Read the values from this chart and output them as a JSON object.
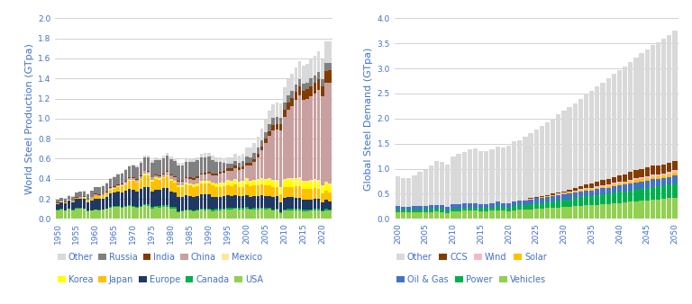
{
  "chart1": {
    "ylabel": "World Steel Production (GTpa)",
    "years": [
      1950,
      1951,
      1952,
      1953,
      1954,
      1955,
      1956,
      1957,
      1958,
      1959,
      1960,
      1961,
      1962,
      1963,
      1964,
      1965,
      1966,
      1967,
      1968,
      1969,
      1970,
      1971,
      1972,
      1973,
      1974,
      1975,
      1976,
      1977,
      1978,
      1979,
      1980,
      1981,
      1982,
      1983,
      1984,
      1985,
      1986,
      1987,
      1988,
      1989,
      1990,
      1991,
      1992,
      1993,
      1994,
      1995,
      1996,
      1997,
      1998,
      1999,
      2000,
      2001,
      2002,
      2003,
      2004,
      2005,
      2006,
      2007,
      2008,
      2009,
      2010,
      2011,
      2012,
      2013,
      2014,
      2015,
      2016,
      2017,
      2018,
      2019,
      2020,
      2021,
      2022
    ],
    "series": {
      "USA": [
        0.088,
        0.095,
        0.084,
        0.101,
        0.088,
        0.106,
        0.104,
        0.102,
        0.077,
        0.084,
        0.09,
        0.088,
        0.089,
        0.099,
        0.115,
        0.119,
        0.121,
        0.115,
        0.119,
        0.128,
        0.119,
        0.109,
        0.121,
        0.136,
        0.132,
        0.105,
        0.116,
        0.113,
        0.124,
        0.123,
        0.101,
        0.102,
        0.067,
        0.075,
        0.083,
        0.08,
        0.074,
        0.08,
        0.09,
        0.088,
        0.089,
        0.079,
        0.084,
        0.088,
        0.091,
        0.095,
        0.095,
        0.098,
        0.097,
        0.097,
        0.102,
        0.09,
        0.091,
        0.091,
        0.099,
        0.094,
        0.098,
        0.082,
        0.091,
        0.058,
        0.08,
        0.086,
        0.088,
        0.087,
        0.088,
        0.079,
        0.079,
        0.082,
        0.087,
        0.088,
        0.073,
        0.086,
        0.081
      ],
      "Canada": [
        0.003,
        0.003,
        0.003,
        0.003,
        0.003,
        0.004,
        0.004,
        0.004,
        0.004,
        0.004,
        0.005,
        0.005,
        0.005,
        0.006,
        0.007,
        0.008,
        0.008,
        0.007,
        0.009,
        0.01,
        0.011,
        0.011,
        0.012,
        0.013,
        0.013,
        0.012,
        0.013,
        0.014,
        0.015,
        0.016,
        0.015,
        0.014,
        0.012,
        0.012,
        0.014,
        0.014,
        0.014,
        0.014,
        0.015,
        0.015,
        0.013,
        0.013,
        0.014,
        0.014,
        0.014,
        0.015,
        0.015,
        0.016,
        0.015,
        0.014,
        0.016,
        0.015,
        0.016,
        0.016,
        0.016,
        0.015,
        0.013,
        0.013,
        0.014,
        0.009,
        0.013,
        0.013,
        0.013,
        0.013,
        0.013,
        0.012,
        0.013,
        0.013,
        0.013,
        0.013,
        0.011,
        0.013,
        0.012
      ],
      "Europe": [
        0.06,
        0.065,
        0.07,
        0.075,
        0.076,
        0.088,
        0.09,
        0.094,
        0.088,
        0.097,
        0.108,
        0.106,
        0.11,
        0.117,
        0.131,
        0.135,
        0.14,
        0.14,
        0.152,
        0.161,
        0.157,
        0.151,
        0.162,
        0.17,
        0.175,
        0.155,
        0.163,
        0.159,
        0.165,
        0.17,
        0.155,
        0.148,
        0.135,
        0.13,
        0.14,
        0.135,
        0.134,
        0.137,
        0.143,
        0.14,
        0.14,
        0.13,
        0.12,
        0.115,
        0.12,
        0.125,
        0.12,
        0.122,
        0.115,
        0.115,
        0.12,
        0.115,
        0.116,
        0.117,
        0.12,
        0.121,
        0.12,
        0.121,
        0.118,
        0.095,
        0.115,
        0.115,
        0.113,
        0.112,
        0.11,
        0.1,
        0.1,
        0.1,
        0.1,
        0.098,
        0.085,
        0.09,
        0.085
      ],
      "Japan": [
        0.005,
        0.006,
        0.007,
        0.008,
        0.008,
        0.009,
        0.011,
        0.012,
        0.012,
        0.016,
        0.022,
        0.028,
        0.028,
        0.031,
        0.039,
        0.041,
        0.047,
        0.062,
        0.066,
        0.082,
        0.093,
        0.088,
        0.096,
        0.119,
        0.117,
        0.102,
        0.107,
        0.102,
        0.102,
        0.112,
        0.111,
        0.101,
        0.099,
        0.097,
        0.105,
        0.105,
        0.098,
        0.098,
        0.105,
        0.108,
        0.11,
        0.109,
        0.098,
        0.099,
        0.098,
        0.102,
        0.098,
        0.105,
        0.093,
        0.094,
        0.107,
        0.102,
        0.108,
        0.11,
        0.113,
        0.105,
        0.106,
        0.105,
        0.097,
        0.087,
        0.11,
        0.107,
        0.107,
        0.111,
        0.111,
        0.105,
        0.105,
        0.105,
        0.104,
        0.099,
        0.083,
        0.096,
        0.089
      ],
      "Korea": [
        0.0,
        0.0,
        0.0,
        0.0,
        0.0,
        0.0,
        0.0,
        0.0,
        0.0,
        0.0,
        0.0,
        0.0,
        0.0,
        0.0,
        0.0,
        0.0,
        0.0,
        0.001,
        0.001,
        0.001,
        0.001,
        0.002,
        0.003,
        0.004,
        0.006,
        0.007,
        0.008,
        0.008,
        0.007,
        0.007,
        0.008,
        0.01,
        0.012,
        0.011,
        0.013,
        0.013,
        0.014,
        0.016,
        0.019,
        0.021,
        0.023,
        0.026,
        0.028,
        0.033,
        0.033,
        0.036,
        0.038,
        0.042,
        0.039,
        0.041,
        0.043,
        0.043,
        0.045,
        0.046,
        0.047,
        0.047,
        0.049,
        0.051,
        0.053,
        0.051,
        0.059,
        0.069,
        0.069,
        0.066,
        0.071,
        0.069,
        0.068,
        0.071,
        0.073,
        0.071,
        0.067,
        0.07,
        0.066
      ],
      "Mexico": [
        0.002,
        0.002,
        0.002,
        0.002,
        0.002,
        0.003,
        0.003,
        0.003,
        0.003,
        0.003,
        0.004,
        0.004,
        0.004,
        0.004,
        0.005,
        0.005,
        0.006,
        0.006,
        0.007,
        0.007,
        0.008,
        0.008,
        0.008,
        0.007,
        0.007,
        0.007,
        0.007,
        0.007,
        0.007,
        0.007,
        0.007,
        0.007,
        0.007,
        0.007,
        0.007,
        0.007,
        0.007,
        0.007,
        0.008,
        0.009,
        0.009,
        0.008,
        0.009,
        0.009,
        0.01,
        0.012,
        0.012,
        0.014,
        0.015,
        0.015,
        0.016,
        0.013,
        0.014,
        0.014,
        0.016,
        0.016,
        0.017,
        0.017,
        0.017,
        0.014,
        0.018,
        0.018,
        0.018,
        0.018,
        0.019,
        0.018,
        0.019,
        0.019,
        0.02,
        0.02,
        0.016,
        0.018,
        0.018
      ],
      "China": [
        0.001,
        0.001,
        0.002,
        0.002,
        0.002,
        0.003,
        0.004,
        0.005,
        0.008,
        0.013,
        0.018,
        0.008,
        0.008,
        0.009,
        0.01,
        0.012,
        0.015,
        0.014,
        0.017,
        0.018,
        0.018,
        0.021,
        0.023,
        0.025,
        0.021,
        0.024,
        0.021,
        0.023,
        0.022,
        0.034,
        0.037,
        0.036,
        0.037,
        0.04,
        0.043,
        0.047,
        0.052,
        0.056,
        0.059,
        0.061,
        0.066,
        0.07,
        0.08,
        0.09,
        0.092,
        0.095,
        0.101,
        0.108,
        0.115,
        0.124,
        0.129,
        0.152,
        0.182,
        0.222,
        0.273,
        0.356,
        0.422,
        0.49,
        0.5,
        0.57,
        0.625,
        0.68,
        0.72,
        0.78,
        0.823,
        0.804,
        0.81,
        0.831,
        0.854,
        0.897,
        0.888,
        0.981,
        1.005
      ],
      "India": [
        0.002,
        0.002,
        0.002,
        0.002,
        0.002,
        0.002,
        0.003,
        0.003,
        0.003,
        0.003,
        0.003,
        0.004,
        0.005,
        0.006,
        0.006,
        0.006,
        0.007,
        0.007,
        0.006,
        0.006,
        0.006,
        0.007,
        0.008,
        0.007,
        0.007,
        0.008,
        0.01,
        0.01,
        0.009,
        0.009,
        0.01,
        0.01,
        0.012,
        0.012,
        0.012,
        0.013,
        0.014,
        0.014,
        0.014,
        0.015,
        0.015,
        0.018,
        0.019,
        0.02,
        0.021,
        0.022,
        0.022,
        0.025,
        0.024,
        0.025,
        0.027,
        0.027,
        0.027,
        0.032,
        0.032,
        0.045,
        0.049,
        0.053,
        0.058,
        0.063,
        0.069,
        0.074,
        0.078,
        0.081,
        0.087,
        0.09,
        0.096,
        0.101,
        0.107,
        0.111,
        0.1,
        0.118,
        0.124
      ],
      "Russia": [
        0.027,
        0.031,
        0.034,
        0.038,
        0.041,
        0.045,
        0.049,
        0.051,
        0.054,
        0.058,
        0.065,
        0.071,
        0.076,
        0.08,
        0.085,
        0.091,
        0.096,
        0.1,
        0.106,
        0.11,
        0.116,
        0.12,
        0.125,
        0.132,
        0.136,
        0.141,
        0.145,
        0.148,
        0.151,
        0.149,
        0.148,
        0.149,
        0.148,
        0.149,
        0.148,
        0.155,
        0.16,
        0.161,
        0.163,
        0.16,
        0.154,
        0.133,
        0.116,
        0.096,
        0.076,
        0.052,
        0.049,
        0.048,
        0.044,
        0.048,
        0.059,
        0.059,
        0.06,
        0.062,
        0.065,
        0.066,
        0.071,
        0.072,
        0.068,
        0.06,
        0.067,
        0.069,
        0.071,
        0.069,
        0.071,
        0.071,
        0.071,
        0.083,
        0.072,
        0.072,
        0.073,
        0.078,
        0.072
      ],
      "Other": [
        0.002,
        0.003,
        0.003,
        0.003,
        0.003,
        0.004,
        0.004,
        0.005,
        0.005,
        0.005,
        0.006,
        0.007,
        0.007,
        0.008,
        0.008,
        0.009,
        0.01,
        0.011,
        0.012,
        0.013,
        0.014,
        0.015,
        0.017,
        0.019,
        0.02,
        0.021,
        0.022,
        0.024,
        0.025,
        0.027,
        0.027,
        0.028,
        0.028,
        0.029,
        0.03,
        0.031,
        0.032,
        0.034,
        0.036,
        0.038,
        0.04,
        0.042,
        0.044,
        0.046,
        0.05,
        0.055,
        0.062,
        0.068,
        0.072,
        0.078,
        0.09,
        0.095,
        0.1,
        0.108,
        0.115,
        0.12,
        0.13,
        0.14,
        0.145,
        0.14,
        0.155,
        0.16,
        0.167,
        0.172,
        0.18,
        0.18,
        0.185,
        0.195,
        0.2,
        0.2,
        0.195,
        0.215,
        0.22
      ]
    },
    "series_order": [
      "USA",
      "Canada",
      "Europe",
      "Japan",
      "Korea",
      "Mexico",
      "China",
      "India",
      "Russia",
      "Other"
    ],
    "colors": {
      "USA": "#92d050",
      "Canada": "#00b050",
      "Europe": "#1f3864",
      "Japan": "#ffc000",
      "Korea": "#ffff00",
      "Mexico": "#ffe699",
      "China": "#c9a0a0",
      "India": "#833c00",
      "Russia": "#808080",
      "Other": "#d9d9d9"
    },
    "ylim": [
      0,
      2.0
    ],
    "yticks": [
      0.0,
      0.2,
      0.4,
      0.6,
      0.8,
      1.0,
      1.2,
      1.4,
      1.6,
      1.8,
      2.0
    ],
    "legend_row1": [
      "Other",
      "Russia",
      "India",
      "China",
      "Mexico"
    ],
    "legend_row2": [
      "Korea",
      "Japan",
      "Europe",
      "Canada",
      "USA"
    ]
  },
  "chart2": {
    "ylabel": "Global Steel Demand (GTpa)",
    "years": [
      2000,
      2001,
      2002,
      2003,
      2004,
      2005,
      2006,
      2007,
      2008,
      2009,
      2010,
      2011,
      2012,
      2013,
      2014,
      2015,
      2016,
      2017,
      2018,
      2019,
      2020,
      2021,
      2022,
      2023,
      2024,
      2025,
      2026,
      2027,
      2028,
      2029,
      2030,
      2031,
      2032,
      2033,
      2034,
      2035,
      2036,
      2037,
      2038,
      2039,
      2040,
      2041,
      2042,
      2043,
      2044,
      2045,
      2046,
      2047,
      2048,
      2049,
      2050
    ],
    "series": {
      "Vehicles": [
        0.14,
        0.13,
        0.13,
        0.13,
        0.14,
        0.14,
        0.14,
        0.15,
        0.14,
        0.12,
        0.15,
        0.15,
        0.16,
        0.16,
        0.16,
        0.15,
        0.15,
        0.16,
        0.17,
        0.16,
        0.15,
        0.17,
        0.18,
        0.18,
        0.19,
        0.2,
        0.21,
        0.22,
        0.22,
        0.23,
        0.24,
        0.24,
        0.25,
        0.26,
        0.27,
        0.27,
        0.28,
        0.29,
        0.3,
        0.31,
        0.32,
        0.33,
        0.34,
        0.35,
        0.36,
        0.37,
        0.38,
        0.39,
        0.4,
        0.41,
        0.42
      ],
      "Power": [
        0.05,
        0.05,
        0.05,
        0.05,
        0.05,
        0.05,
        0.06,
        0.06,
        0.06,
        0.05,
        0.06,
        0.06,
        0.07,
        0.07,
        0.07,
        0.07,
        0.07,
        0.07,
        0.08,
        0.08,
        0.08,
        0.09,
        0.09,
        0.1,
        0.1,
        0.11,
        0.11,
        0.12,
        0.13,
        0.13,
        0.14,
        0.15,
        0.16,
        0.17,
        0.18,
        0.18,
        0.19,
        0.2,
        0.2,
        0.21,
        0.22,
        0.22,
        0.23,
        0.24,
        0.24,
        0.25,
        0.26,
        0.26,
        0.27,
        0.27,
        0.28
      ],
      "Oil & Gas": [
        0.06,
        0.06,
        0.06,
        0.07,
        0.07,
        0.07,
        0.07,
        0.07,
        0.08,
        0.07,
        0.08,
        0.08,
        0.08,
        0.09,
        0.09,
        0.08,
        0.08,
        0.08,
        0.09,
        0.08,
        0.08,
        0.08,
        0.09,
        0.09,
        0.1,
        0.1,
        0.1,
        0.1,
        0.11,
        0.11,
        0.11,
        0.11,
        0.11,
        0.12,
        0.12,
        0.12,
        0.12,
        0.12,
        0.12,
        0.13,
        0.13,
        0.13,
        0.14,
        0.14,
        0.14,
        0.14,
        0.15,
        0.15,
        0.15,
        0.15,
        0.16
      ],
      "Solar": [
        0.0,
        0.0,
        0.0,
        0.0,
        0.0,
        0.0,
        0.0,
        0.0,
        0.0,
        0.0,
        0.0,
        0.0,
        0.0,
        0.0,
        0.0,
        0.0,
        0.0,
        0.0,
        0.0,
        0.0,
        0.0,
        0.0,
        0.0,
        0.0,
        0.0,
        0.0,
        0.01,
        0.01,
        0.01,
        0.01,
        0.01,
        0.02,
        0.02,
        0.02,
        0.03,
        0.03,
        0.03,
        0.03,
        0.04,
        0.04,
        0.04,
        0.04,
        0.04,
        0.04,
        0.05,
        0.05,
        0.05,
        0.05,
        0.05,
        0.06,
        0.06
      ],
      "Wind": [
        0.0,
        0.0,
        0.0,
        0.0,
        0.0,
        0.0,
        0.0,
        0.0,
        0.0,
        0.0,
        0.0,
        0.0,
        0.0,
        0.0,
        0.0,
        0.0,
        0.0,
        0.0,
        0.0,
        0.0,
        0.0,
        0.0,
        0.0,
        0.01,
        0.01,
        0.01,
        0.01,
        0.01,
        0.01,
        0.02,
        0.02,
        0.02,
        0.02,
        0.02,
        0.02,
        0.02,
        0.03,
        0.03,
        0.03,
        0.03,
        0.03,
        0.03,
        0.03,
        0.04,
        0.04,
        0.04,
        0.04,
        0.04,
        0.04,
        0.05,
        0.05
      ],
      "CCS": [
        0.0,
        0.0,
        0.0,
        0.0,
        0.0,
        0.0,
        0.0,
        0.0,
        0.0,
        0.0,
        0.0,
        0.0,
        0.0,
        0.0,
        0.0,
        0.0,
        0.0,
        0.0,
        0.0,
        0.0,
        0.0,
        0.0,
        0.01,
        0.01,
        0.01,
        0.01,
        0.02,
        0.02,
        0.02,
        0.03,
        0.03,
        0.04,
        0.05,
        0.06,
        0.07,
        0.08,
        0.09,
        0.1,
        0.11,
        0.12,
        0.13,
        0.14,
        0.15,
        0.16,
        0.17,
        0.18,
        0.18,
        0.18,
        0.18,
        0.18,
        0.19
      ],
      "Other": [
        0.6,
        0.57,
        0.58,
        0.62,
        0.68,
        0.72,
        0.8,
        0.88,
        0.86,
        0.84,
        0.95,
        1.0,
        1.03,
        1.06,
        1.08,
        1.05,
        1.05,
        1.08,
        1.1,
        1.1,
        1.15,
        1.2,
        1.2,
        1.25,
        1.3,
        1.35,
        1.4,
        1.45,
        1.5,
        1.55,
        1.6,
        1.65,
        1.7,
        1.75,
        1.8,
        1.85,
        1.9,
        1.95,
        2.0,
        2.05,
        2.1,
        2.15,
        2.2,
        2.25,
        2.3,
        2.35,
        2.4,
        2.45,
        2.5,
        2.55,
        2.6
      ]
    },
    "series_order": [
      "Vehicles",
      "Power",
      "Oil & Gas",
      "Solar",
      "Wind",
      "CCS",
      "Other"
    ],
    "colors": {
      "Vehicles": "#92d050",
      "Power": "#00b050",
      "Oil & Gas": "#4472c4",
      "Solar": "#ffc000",
      "Wind": "#f4b8c8",
      "CCS": "#833c00",
      "Other": "#d9d9d9"
    },
    "ylim": [
      0,
      4.0
    ],
    "yticks": [
      0.0,
      0.5,
      1.0,
      1.5,
      2.0,
      2.5,
      3.0,
      3.5,
      4.0
    ],
    "legend_row1": [
      "Other",
      "CCS",
      "Wind",
      "Solar"
    ],
    "legend_row2": [
      "Oil & Gas",
      "Power",
      "Vehicles"
    ]
  },
  "text_color": "#4472c4",
  "background_color": "#ffffff",
  "grid_color": "#bfbfbf",
  "tick_label_size": 6.5,
  "axis_label_size": 8,
  "legend_fontsize": 7
}
